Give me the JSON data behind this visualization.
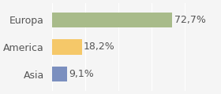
{
  "categories": [
    "Europa",
    "America",
    "Asia"
  ],
  "values": [
    72.7,
    18.2,
    9.1
  ],
  "labels": [
    "72,7%",
    "18,2%",
    "9,1%"
  ],
  "colors": [
    "#a8bb8a",
    "#f5c869",
    "#7b8fbf"
  ],
  "xlim": [
    0,
    100
  ],
  "background_color": "#f5f5f5",
  "bar_height": 0.55,
  "label_fontsize": 9,
  "category_fontsize": 9
}
